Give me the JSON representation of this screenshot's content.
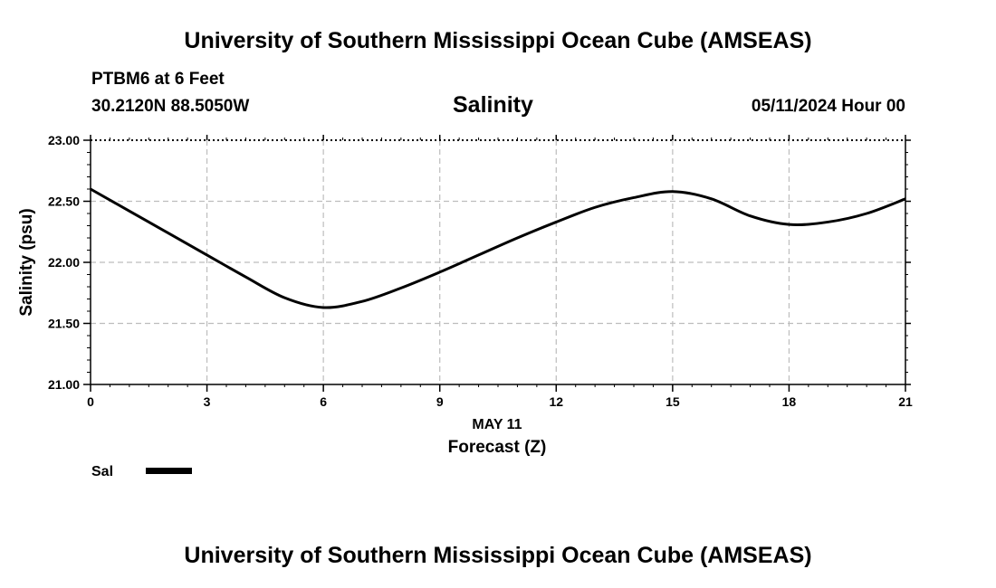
{
  "header": {
    "title_top": "University of Southern Mississippi Ocean Cube (AMSEAS)",
    "station": "PTBM6 at 6 Feet",
    "coords": "30.2120N  88.5050W",
    "parameter": "Salinity",
    "datetime": "05/11/2024 Hour 00"
  },
  "footer": {
    "title_bottom": "University of Southern Mississippi Ocean Cube (AMSEAS)"
  },
  "legend": {
    "label": "Sal"
  },
  "chart_data": {
    "type": "line",
    "title": "Salinity",
    "xlabel": "Forecast (Z)",
    "xlabel_date": "MAY 11",
    "ylabel": "Salinity (psu)",
    "xlim": [
      0,
      21
    ],
    "ylim": [
      21.0,
      23.0
    ],
    "xticks": [
      0,
      3,
      6,
      9,
      12,
      15,
      18,
      21
    ],
    "yticks": [
      21.0,
      21.5,
      22.0,
      22.5,
      23.0
    ],
    "xtick_labels": [
      "0",
      "3",
      "6",
      "9",
      "12",
      "15",
      "18",
      "21"
    ],
    "ytick_labels": [
      "21.00",
      "21.50",
      "22.00",
      "22.50",
      "23.00"
    ],
    "grid": true,
    "series": [
      {
        "name": "Sal",
        "x": [
          0,
          1,
          2,
          3,
          4,
          5,
          6,
          7,
          8,
          9,
          10,
          11,
          12,
          13,
          14,
          15,
          16,
          17,
          18,
          19,
          20,
          21
        ],
        "values": [
          22.6,
          22.42,
          22.24,
          22.06,
          21.88,
          21.71,
          21.63,
          21.68,
          21.79,
          21.92,
          22.06,
          22.2,
          22.33,
          22.45,
          22.53,
          22.58,
          22.52,
          22.38,
          22.31,
          22.33,
          22.4,
          22.52
        ]
      }
    ]
  }
}
